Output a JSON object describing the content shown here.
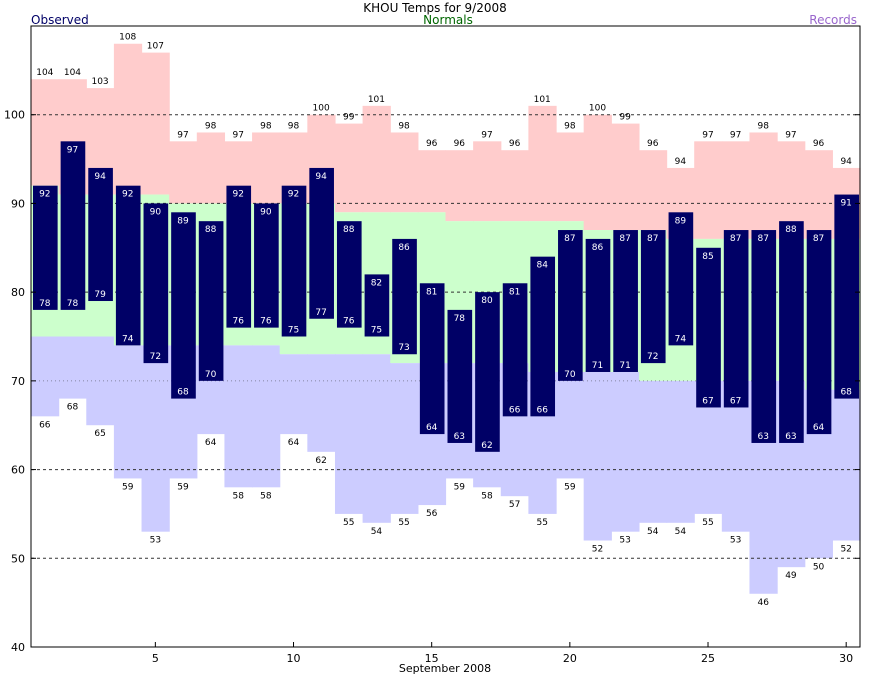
{
  "chart_data": {
    "type": "bar",
    "title": "KHOU Temps for 9/2008",
    "legend": {
      "observed": "Observed",
      "normals": "Normals",
      "records": "Records"
    },
    "xlabel": "September 2008",
    "ylabel": "",
    "ylim": [
      40,
      110
    ],
    "yticks": [
      40,
      50,
      60,
      70,
      80,
      90,
      100
    ],
    "xticks": [
      5,
      10,
      15,
      20,
      25,
      30
    ],
    "grid": "dashed horizontal lines at 50, 60, 80, 90, 100",
    "days": [
      1,
      2,
      3,
      4,
      5,
      6,
      7,
      8,
      9,
      10,
      11,
      12,
      13,
      14,
      15,
      16,
      17,
      18,
      19,
      20,
      21,
      22,
      23,
      24,
      25,
      26,
      27,
      28,
      29,
      30
    ],
    "series": [
      {
        "name": "Record High",
        "values": [
          104,
          104,
          103,
          108,
          107,
          97,
          98,
          97,
          98,
          98,
          100,
          99,
          101,
          98,
          96,
          96,
          97,
          96,
          101,
          98,
          100,
          99,
          96,
          94,
          97,
          97,
          98,
          97,
          96,
          94
        ]
      },
      {
        "name": "Record Low",
        "values": [
          66,
          68,
          65,
          59,
          53,
          59,
          64,
          58,
          58,
          64,
          62,
          55,
          54,
          55,
          56,
          59,
          58,
          57,
          55,
          59,
          52,
          53,
          54,
          54,
          55,
          53,
          46,
          49,
          50,
          52
        ]
      },
      {
        "name": "Normal High",
        "values": [
          92,
          91,
          91,
          91,
          91,
          90,
          90,
          90,
          90,
          90,
          90,
          89,
          89,
          89,
          89,
          88,
          88,
          88,
          88,
          88,
          87,
          87,
          87,
          86,
          86,
          86,
          86,
          86,
          86,
          86
        ]
      },
      {
        "name": "Normal Low",
        "values": [
          75,
          75,
          75,
          74,
          74,
          74,
          74,
          74,
          74,
          73,
          73,
          73,
          73,
          72,
          72,
          72,
          72,
          72,
          71,
          71,
          71,
          71,
          70,
          70,
          70,
          70,
          70,
          70,
          69,
          69
        ]
      },
      {
        "name": "Observed High",
        "values": [
          92,
          97,
          94,
          92,
          90,
          89,
          88,
          92,
          90,
          92,
          94,
          88,
          82,
          86,
          81,
          78,
          80,
          81,
          84,
          87,
          86,
          87,
          87,
          89,
          85,
          87,
          87,
          88,
          87,
          91
        ]
      },
      {
        "name": "Observed Low",
        "values": [
          78,
          78,
          79,
          74,
          72,
          68,
          70,
          76,
          76,
          75,
          77,
          76,
          75,
          73,
          64,
          63,
          62,
          66,
          66,
          70,
          71,
          71,
          72,
          74,
          67,
          67,
          63,
          63,
          64,
          68
        ]
      }
    ]
  },
  "colors": {
    "record_high_band": "#ffcccc",
    "record_low_band": "#ccccff",
    "normal_band": "#ccffcc",
    "observed_bar": "#000066",
    "observed_text": "#000066",
    "normals_text": "#006600",
    "records_text": "#9966cc",
    "grid": "#333333"
  }
}
